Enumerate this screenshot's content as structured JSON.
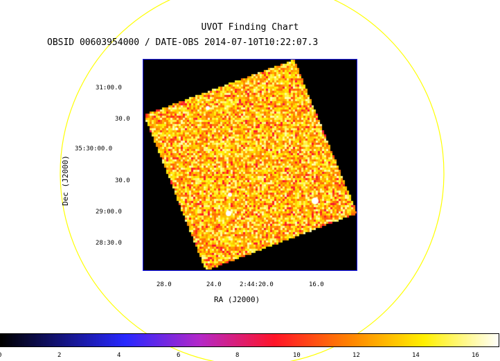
{
  "chart": {
    "title": "UVOT Finding Chart",
    "subtitle": "OBSID 00603954000 / DATE-OBS 2014-07-10T10:22:07.3",
    "ylabel": "Dec (J2000)",
    "xlabel": "RA (J2000)",
    "yticks": [
      "31:00.0",
      "30.0",
      "35:30:00.0",
      "30.0",
      "29:00.0",
      "28:30.0"
    ],
    "xticks": [
      "28.0",
      "24.0",
      "2:44:20.0",
      "16.0"
    ],
    "colorbar_ticks": [
      "0",
      "2",
      "4",
      "6",
      "8",
      "10",
      "12",
      "14",
      "16"
    ]
  },
  "colors": {
    "circle": "#ffff00",
    "frame": "#1a1aff"
  }
}
